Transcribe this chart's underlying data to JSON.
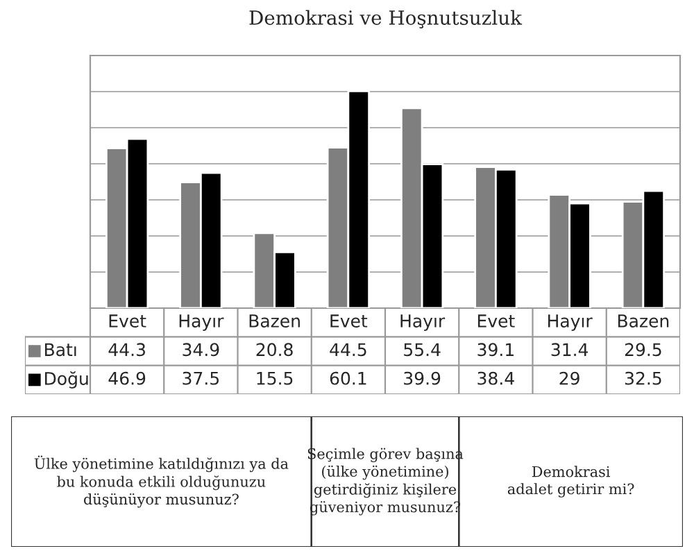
{
  "chart_data": {
    "type": "bar",
    "title": "Demokrasi ve Hoşnutsuzluk",
    "categories": [
      "Evet",
      "Hayır",
      "Bazen",
      "Evet",
      "Hayır",
      "Evet",
      "Hayır",
      "Bazen"
    ],
    "series": [
      {
        "name": "Batı",
        "color": "#7f7f7f",
        "values": [
          44.3,
          34.9,
          20.8,
          44.5,
          55.4,
          39.1,
          31.4,
          29.5
        ]
      },
      {
        "name": "Doğu",
        "color": "#000000",
        "values": [
          46.9,
          37.5,
          15.5,
          60.1,
          39.9,
          38.4,
          29,
          32.5
        ]
      }
    ],
    "ylim": [
      0,
      70
    ],
    "yticks": [
      {
        "value": 0,
        "label": null
      },
      {
        "value": 10,
        "label": null
      },
      {
        "value": 20,
        "label": null
      },
      {
        "value": 30,
        "label": null
      },
      {
        "value": 40,
        "label": null
      },
      {
        "value": 50,
        "label": null
      },
      {
        "value": 60,
        "label": null
      },
      {
        "value": 70,
        "label": null
      }
    ],
    "grid": "y",
    "data_labels": true,
    "legend": "bottom left",
    "annotations": [
      "Ülke yönetimine katıldığınızı ya da\nbu konuda etkili olduğunuzu\ndüşünüyor musunuz?",
      "Seçimle görev başına\n(ülke yönetimine)\ngetirdiğiniz kişilere\ngüveniyor musunuz?",
      "Demokrasi\nadalet getirir mi?"
    ]
  }
}
